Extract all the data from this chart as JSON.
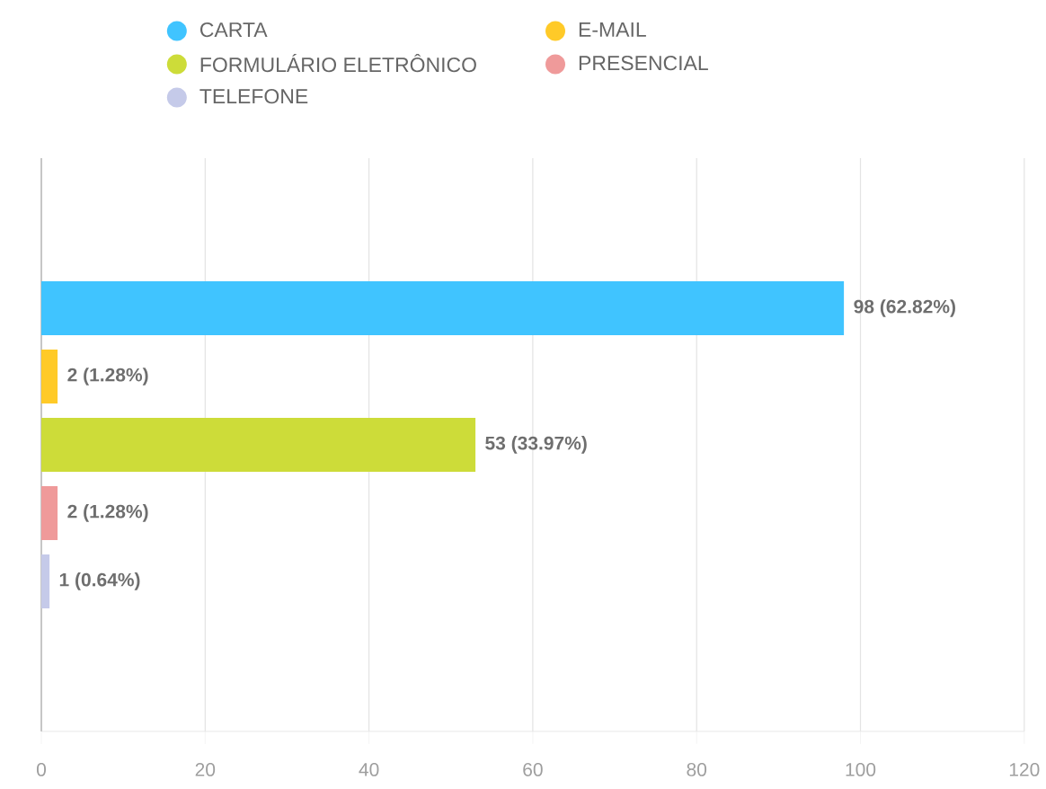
{
  "chart_data": {
    "type": "bar",
    "orientation": "horizontal",
    "categories": [
      null
    ],
    "series": [
      {
        "name": "CARTA",
        "color": "#40c4ff",
        "values": [
          98
        ],
        "value_labels": [
          "98 (62.82%)"
        ]
      },
      {
        "name": "E-MAIL",
        "color": "#ffca28",
        "values": [
          2
        ],
        "value_labels": [
          "2 (1.28%)"
        ]
      },
      {
        "name": "FORMULÁRIO ELETRÔNICO",
        "color": "#cddc39",
        "values": [
          53
        ],
        "value_labels": [
          "53 (33.97%)"
        ]
      },
      {
        "name": "PRESENCIAL",
        "color": "#ef9a9a",
        "values": [
          2
        ],
        "value_labels": [
          "2 (1.28%)"
        ]
      },
      {
        "name": "TELEFONE",
        "color": "#c5cae9",
        "values": [
          1
        ],
        "value_labels": [
          "1 (0.64%)"
        ]
      }
    ],
    "xlim": [
      0,
      120
    ],
    "xticks": [
      0,
      20,
      40,
      60,
      80,
      100,
      120
    ],
    "grid": "x",
    "legend": "top"
  }
}
